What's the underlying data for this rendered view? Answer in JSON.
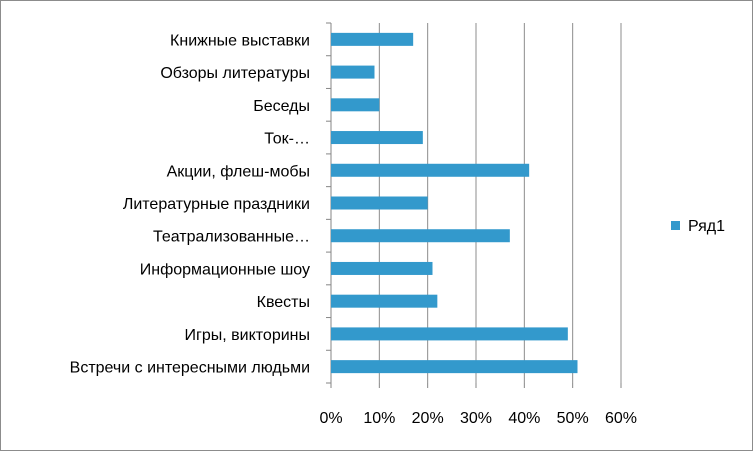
{
  "chart_data": {
    "type": "bar",
    "orientation": "horizontal",
    "categories": [
      "Книжные выставки",
      "Обзоры литературы",
      "Беседы",
      "Ток-…",
      "Акции, флеш-мобы",
      "Литературные праздники",
      "Театрализованные…",
      "Информационные шоу",
      "Квесты",
      "Игры, викторины",
      "Встречи с интересными людьми"
    ],
    "series": [
      {
        "name": "Ряд1",
        "values": [
          0.17,
          0.09,
          0.1,
          0.19,
          0.41,
          0.2,
          0.37,
          0.21,
          0.22,
          0.49,
          0.51
        ]
      }
    ],
    "xlim": [
      0,
      0.6
    ],
    "x_ticks": [
      0,
      0.1,
      0.2,
      0.3,
      0.4,
      0.5,
      0.6
    ],
    "x_tick_labels": [
      "0%",
      "10%",
      "20%",
      "30%",
      "40%",
      "50%",
      "60%"
    ],
    "grid": "vertical",
    "legend_position": "right",
    "bar_color": "#3399cc"
  }
}
